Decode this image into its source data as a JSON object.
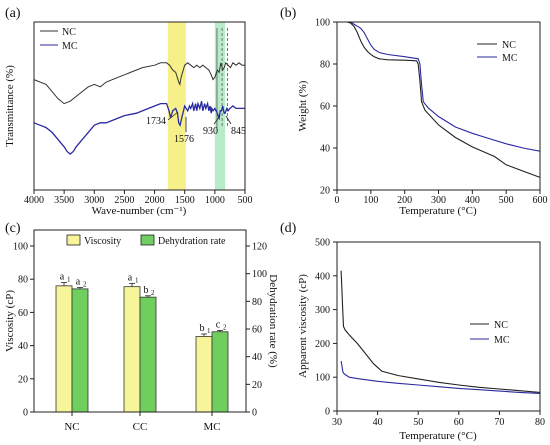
{
  "chart_data": [
    {
      "panel_label": "(a)",
      "type": "line",
      "xlabel": "Wave-number (cm⁻¹)",
      "ylabel": "Transmittance (%)",
      "xlim": [
        4000,
        500
      ],
      "x_ticks": [
        "4000",
        "3500",
        "3000",
        "2500",
        "2000",
        "1500",
        "1000",
        "500"
      ],
      "y_ticks_shown": false,
      "legend": {
        "position": "top-left",
        "entries": [
          "NC",
          "MC"
        ]
      },
      "highlight_bands": [
        {
          "from": 1780,
          "to": 1480,
          "color": "#f7f08a"
        },
        {
          "from": 1000,
          "to": 830,
          "color": "#b8ecc8"
        }
      ],
      "reference_lines": [
        965,
        880,
        790
      ],
      "annotations": [
        {
          "text": "1734",
          "x": 1734
        },
        {
          "text": "1576",
          "x": 1576
        },
        {
          "text": "930",
          "x": 930
        },
        {
          "text": "845",
          "x": 845
        }
      ],
      "series": [
        {
          "name": "NC",
          "color": "#333333",
          "x": [
            4000,
            3800,
            3600,
            3500,
            3400,
            3300,
            3100,
            3000,
            2900,
            2800,
            2600,
            2400,
            2200,
            2000,
            1900,
            1800,
            1750,
            1700,
            1650,
            1600,
            1580,
            1560,
            1500,
            1450,
            1400,
            1350,
            1300,
            1250,
            1200,
            1150,
            1100,
            1060,
            1030,
            1000,
            960,
            930,
            900,
            870,
            845,
            820,
            780,
            740,
            700,
            650,
            600,
            550,
            500
          ],
          "y": [
            46,
            44,
            38,
            36,
            37,
            39,
            43,
            44,
            43,
            45,
            47,
            49,
            51,
            52,
            53,
            53,
            52,
            50,
            49,
            45,
            44,
            47,
            52,
            53,
            52,
            51,
            52,
            51,
            52,
            51,
            50,
            48,
            46,
            47,
            50,
            49,
            53,
            50,
            51,
            53,
            52,
            51,
            53,
            52,
            53,
            52,
            52
          ]
        },
        {
          "name": "MC",
          "color": "#2a2aa0",
          "x": [
            4000,
            3900,
            3800,
            3700,
            3600,
            3500,
            3450,
            3400,
            3350,
            3300,
            3200,
            3100,
            3000,
            2900,
            2800,
            2700,
            2500,
            2300,
            2100,
            2000,
            1900,
            1800,
            1760,
            1734,
            1700,
            1650,
            1620,
            1600,
            1576,
            1550,
            1500,
            1450,
            1420,
            1400,
            1370,
            1350,
            1320,
            1300,
            1280,
            1250,
            1220,
            1200,
            1170,
            1150,
            1120,
            1100,
            1080,
            1060,
            1050,
            1030,
            1000,
            980,
            960,
            930,
            910,
            890,
            870,
            845,
            830,
            800,
            780,
            750,
            700,
            650,
            600,
            550,
            500
          ],
          "y": [
            28,
            27,
            26,
            24,
            21,
            18,
            16,
            15,
            16,
            18,
            21,
            24,
            27,
            28,
            28,
            29,
            31,
            32,
            34,
            35,
            36,
            36,
            33,
            30,
            33,
            34,
            32,
            28,
            27,
            30,
            35,
            33,
            35,
            34,
            36,
            33,
            36,
            33,
            36,
            34,
            37,
            33,
            36,
            34,
            36,
            33,
            35,
            32,
            34,
            33,
            34,
            33,
            32,
            30,
            33,
            33,
            35,
            32,
            32,
            34,
            33,
            34,
            35,
            34,
            34,
            34,
            34
          ]
        }
      ]
    },
    {
      "panel_label": "(b)",
      "type": "line",
      "xlabel": "Temperature (°C)",
      "ylabel": "Weight (%)",
      "xlim": [
        0,
        600
      ],
      "ylim": [
        20,
        100
      ],
      "x_ticks": [
        "0",
        "100",
        "200",
        "300",
        "400",
        "500",
        "600"
      ],
      "y_ticks": [
        "20",
        "40",
        "60",
        "80",
        "100"
      ],
      "legend": {
        "position": "top-right",
        "entries": [
          "NC",
          "MC"
        ]
      },
      "series": [
        {
          "name": "NC",
          "color": "#222222",
          "x": [
            30,
            40,
            50,
            60,
            70,
            80,
            90,
            100,
            110,
            125,
            150,
            200,
            235,
            240,
            245,
            250,
            260,
            300,
            350,
            400,
            450,
            465,
            500,
            550,
            600
          ],
          "y": [
            100,
            99.5,
            98,
            95,
            91,
            88,
            86,
            84.5,
            83.5,
            82.5,
            82,
            81.8,
            81.5,
            80,
            72,
            62,
            58,
            51,
            45,
            40.5,
            37,
            36,
            32,
            29,
            26
          ]
        },
        {
          "name": "MC",
          "color": "#2a2aa0",
          "x": [
            30,
            40,
            50,
            60,
            70,
            80,
            90,
            100,
            110,
            125,
            150,
            200,
            240,
            245,
            250,
            255,
            270,
            300,
            350,
            400,
            450,
            500,
            550,
            600
          ],
          "y": [
            100,
            100,
            99,
            98,
            97,
            95,
            92,
            89,
            87,
            85.5,
            84.5,
            83.5,
            82.5,
            80,
            70,
            62,
            59,
            55,
            50,
            47,
            44.5,
            42,
            40,
            38.5
          ]
        }
      ]
    },
    {
      "panel_label": "(c)",
      "type": "bar",
      "categories": [
        "NC",
        "CC",
        "MC"
      ],
      "ylabel": "Viscosity (cP)",
      "y2label": "Dehydration rate (%)",
      "ylim": [
        0,
        100
      ],
      "y2lim": [
        0,
        120
      ],
      "y_ticks": [
        "0",
        "20",
        "40",
        "60",
        "80",
        "100"
      ],
      "y2_ticks": [
        "0",
        "20",
        "40",
        "60",
        "80",
        "100",
        "120"
      ],
      "legend": {
        "position": "top",
        "entries": [
          "Viscosity",
          "Dehydration rate"
        ]
      },
      "series": [
        {
          "name": "Viscosity",
          "color": "#f6f59a",
          "axis": "left",
          "values": [
            76,
            75.5,
            45.5
          ],
          "errors": [
            2,
            2,
            1.5
          ],
          "labels": [
            [
              "a",
              "1"
            ],
            [
              "a",
              "1"
            ],
            [
              "b",
              "1"
            ]
          ]
        },
        {
          "name": "Dehydration rate",
          "color": "#6fce5e",
          "axis": "right",
          "values": [
            89,
            83,
            58
          ],
          "errors": [
            1,
            1,
            1
          ],
          "labels": [
            [
              "a",
              "2"
            ],
            [
              "b",
              "2"
            ],
            [
              "c",
              "2"
            ]
          ]
        }
      ]
    },
    {
      "panel_label": "(d)",
      "type": "line",
      "xlabel": "Temperature (°C)",
      "ylabel": "Apparent viscosity (cP)",
      "xlim": [
        30,
        80
      ],
      "ylim": [
        0,
        500
      ],
      "x_ticks": [
        "30",
        "40",
        "50",
        "60",
        "70",
        "80"
      ],
      "y_ticks": [
        "0",
        "100",
        "200",
        "300",
        "400",
        "500"
      ],
      "legend": {
        "position": "right",
        "entries": [
          "NC",
          "MC"
        ]
      },
      "series": [
        {
          "name": "NC",
          "color": "#222222",
          "x": [
            31,
            31.2,
            31.4,
            31.6,
            32,
            33,
            35,
            37,
            39,
            41,
            45,
            50,
            55,
            60,
            65,
            70,
            75,
            80
          ],
          "y": [
            415,
            360,
            300,
            250,
            240,
            225,
            200,
            170,
            140,
            118,
            105,
            95,
            85,
            77,
            70,
            65,
            60,
            55
          ]
        },
        {
          "name": "MC",
          "color": "#2a2aa0",
          "x": [
            31,
            31.2,
            31.4,
            31.6,
            32,
            33,
            35,
            40,
            45,
            50,
            55,
            60,
            65,
            70,
            75,
            80
          ],
          "y": [
            148,
            135,
            118,
            112,
            108,
            100,
            96,
            88,
            82,
            77,
            72,
            67,
            63,
            59,
            55,
            52
          ]
        }
      ]
    }
  ]
}
